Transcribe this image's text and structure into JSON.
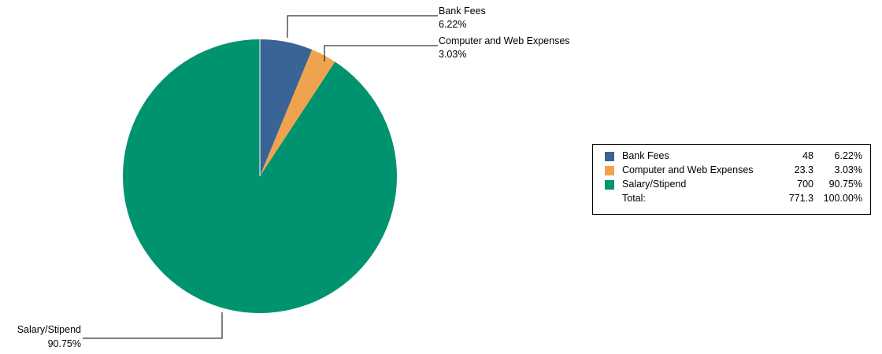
{
  "chart_data": {
    "type": "pie",
    "slices": [
      {
        "label": "Bank Fees",
        "value": 48,
        "percent": "6.22%",
        "color": "#3a6496",
        "legend_value": "48"
      },
      {
        "label": "Computer and Web Expenses",
        "value": 23.3,
        "percent": "3.03%",
        "color": "#f0a34f",
        "legend_value": "23.3"
      },
      {
        "label": "Salary/Stipend",
        "value": 700,
        "percent": "90.75%",
        "color": "#009370",
        "legend_value": "700"
      }
    ],
    "total_label": "Total:",
    "total_value": "771.3",
    "total_percent": "100.00%"
  }
}
